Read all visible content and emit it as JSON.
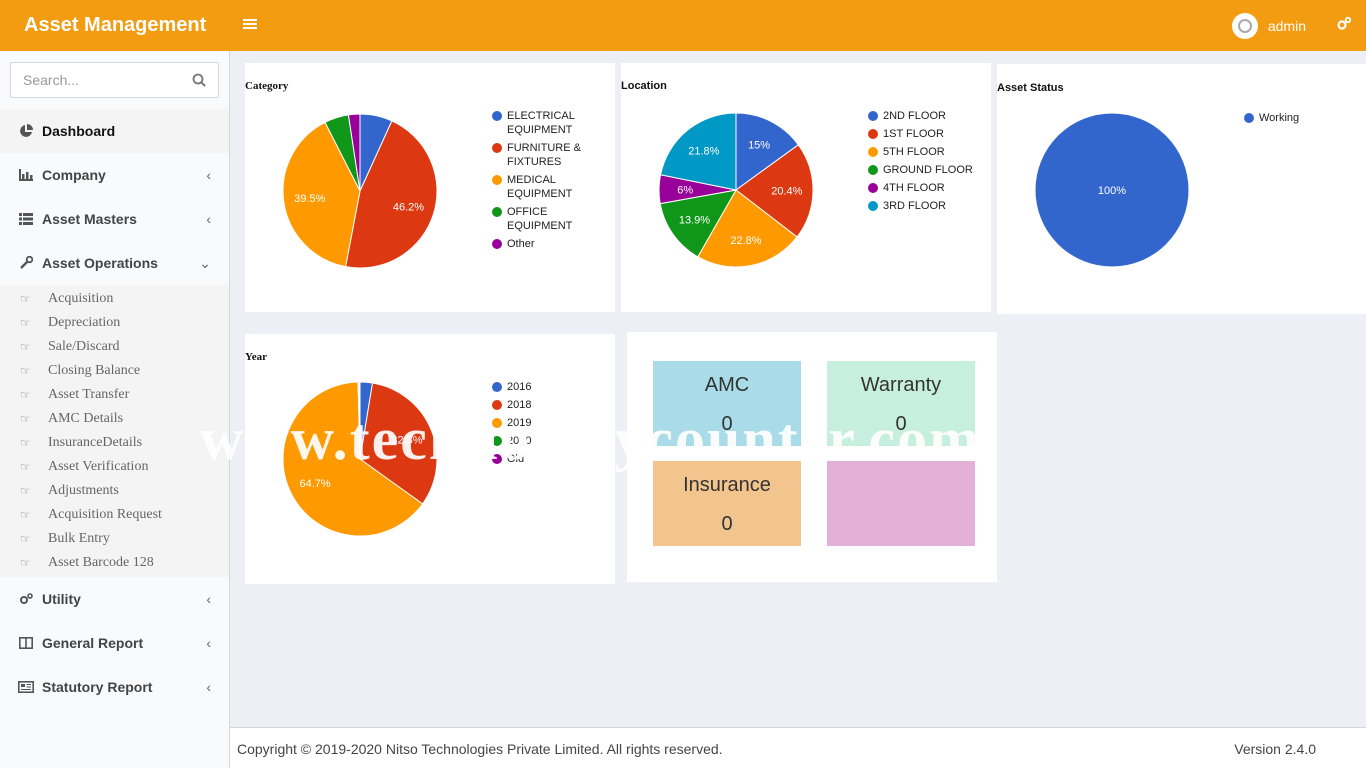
{
  "header": {
    "brand": "Asset Management",
    "user": "admin"
  },
  "search": {
    "placeholder": "Search..."
  },
  "sidebar": {
    "items": [
      {
        "label": "Dashboard",
        "icon": "pie-chart-icon"
      },
      {
        "label": "Company",
        "icon": "bar-chart-icon"
      },
      {
        "label": "Asset Masters",
        "icon": "list-icon"
      },
      {
        "label": "Asset Operations",
        "icon": "wrench-icon"
      },
      {
        "label": "Utility",
        "icon": "gears-icon"
      },
      {
        "label": "General Report",
        "icon": "columns-icon"
      },
      {
        "label": "Statutory Report",
        "icon": "newspaper-icon"
      }
    ],
    "sub_items": [
      "Acquisition",
      "Depreciation",
      "Sale/Discard",
      "Closing Balance",
      "Asset Transfer",
      "AMC Details",
      "InsuranceDetails",
      "Asset Verification",
      "Adjustments",
      "Acquisition Request",
      "Bulk Entry",
      "Asset Barcode 128"
    ]
  },
  "charts": {
    "category": {
      "title": "Category",
      "legend": [
        "ELECTRICAL EQUIPMENT",
        "FURNITURE & FIXTURES",
        "MEDICAL EQUIPMENT",
        "OFFICE EQUIPMENT",
        "Other"
      ],
      "colors": [
        "#3366cc",
        "#dc3912",
        "#ff9900",
        "#109618",
        "#990099"
      ],
      "values": [
        6.8,
        46.2,
        39.5,
        5.1,
        2.4
      ],
      "labels": [
        "",
        "46.2%",
        "39.5%",
        "",
        ""
      ]
    },
    "location": {
      "title": "Location",
      "legend": [
        "2ND FLOOR",
        "1ST FLOOR",
        "5TH FLOOR",
        "GROUND FLOOR",
        "4TH FLOOR",
        "3RD FLOOR"
      ],
      "colors": [
        "#3366cc",
        "#dc3912",
        "#ff9900",
        "#109618",
        "#990099",
        "#0099c6"
      ],
      "values": [
        15,
        20.4,
        22.8,
        13.9,
        6,
        21.8
      ],
      "labels": [
        "15%",
        "20.4%",
        "22.8%",
        "13.9%",
        "6%",
        "21.8%"
      ]
    },
    "status": {
      "title": "Asset Status",
      "legend": [
        "Working"
      ],
      "colors": [
        "#3366cc"
      ],
      "values": [
        100
      ],
      "labels": [
        "100%"
      ]
    },
    "year": {
      "title": "Year",
      "legend": [
        "2016",
        "2018",
        "2019",
        "20_0",
        "Old"
      ],
      "colors": [
        "#3366cc",
        "#dc3912",
        "#ff9900",
        "#109618",
        "#990099"
      ],
      "values": [
        2.6,
        32.3,
        64.7,
        0.2,
        0.2
      ],
      "labels": [
        "",
        "32.3%",
        "64.7%",
        "",
        ""
      ]
    }
  },
  "tiles": [
    {
      "label": "AMC",
      "value": "0",
      "color": "#a9dbe9"
    },
    {
      "label": "Warranty",
      "value": "0",
      "color": "#c6efe0"
    },
    {
      "label": "Insurance",
      "value": "0",
      "color": "#f2c48e"
    },
    {
      "label": "",
      "value": "",
      "color": "#e3b1d8"
    }
  ],
  "watermark": "www.technologycounter.com",
  "footer": {
    "copyright": "Copyright © 2019-2020 Nitso Technologies Private Limited. All rights reserved.",
    "version": "Version 2.4.0"
  }
}
